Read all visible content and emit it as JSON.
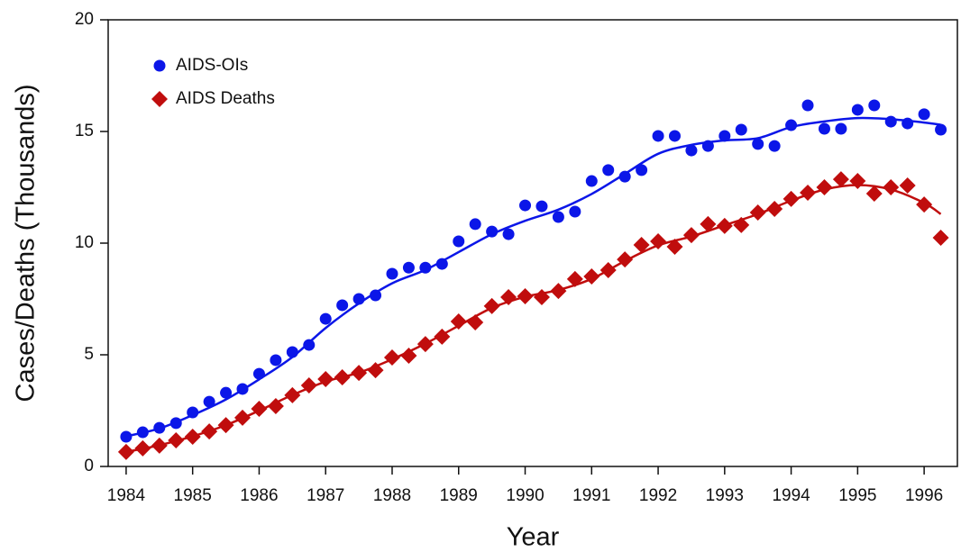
{
  "chart_data": {
    "type": "scatter",
    "xlabel": "Year",
    "ylabel": "Cases/Deaths (Thousands)",
    "x": [
      1984,
      1984.25,
      1984.5,
      1984.75,
      1985,
      1985.25,
      1985.5,
      1985.75,
      1986,
      1986.25,
      1986.5,
      1986.75,
      1987,
      1987.25,
      1987.5,
      1987.75,
      1988,
      1988.25,
      1988.5,
      1988.75,
      1989,
      1989.25,
      1989.5,
      1989.75,
      1990,
      1990.25,
      1990.5,
      1990.75,
      1991,
      1991.25,
      1991.5,
      1991.75,
      1992,
      1992.25,
      1992.5,
      1992.75,
      1993,
      1993.25,
      1993.5,
      1993.75,
      1994,
      1994.25,
      1994.5,
      1994.75,
      1995,
      1995.25,
      1995.5,
      1995.75,
      1996,
      1996.25
    ],
    "trend_x": [
      1984,
      1984.5,
      1985,
      1985.5,
      1986,
      1986.5,
      1987,
      1987.5,
      1988,
      1988.5,
      1989,
      1989.5,
      1990,
      1990.5,
      1991,
      1991.5,
      1992,
      1992.5,
      1993,
      1993.5,
      1994,
      1994.5,
      1995,
      1995.5,
      1996,
      1996.25
    ],
    "series": [
      {
        "name": "AIDS-OIs",
        "color": "#0b16e8",
        "marker": "circle",
        "values": [
          1.33,
          1.53,
          1.73,
          1.94,
          2.42,
          2.9,
          3.3,
          3.47,
          4.15,
          4.76,
          5.12,
          5.44,
          6.61,
          7.22,
          7.5,
          7.66,
          8.63,
          8.9,
          8.9,
          9.07,
          10.08,
          10.85,
          10.52,
          10.4,
          11.69,
          11.65,
          11.17,
          11.41,
          12.78,
          13.27,
          12.98,
          13.27,
          14.8,
          14.8,
          14.15,
          14.35,
          14.8,
          15.08,
          14.44,
          14.35,
          15.28,
          16.17,
          15.12,
          15.12,
          15.97,
          16.17,
          15.44,
          15.36,
          15.77,
          15.08
        ],
        "trend": [
          1.35,
          1.7,
          2.3,
          3.0,
          3.9,
          4.9,
          6.2,
          7.3,
          8.2,
          8.8,
          9.6,
          10.4,
          11.0,
          11.5,
          12.2,
          13.1,
          14.0,
          14.4,
          14.6,
          14.7,
          15.2,
          15.45,
          15.6,
          15.55,
          15.4,
          15.3
        ]
      },
      {
        "name": "AIDS Deaths",
        "color": "#c00d0d",
        "marker": "diamond",
        "values": [
          0.65,
          0.81,
          0.93,
          1.17,
          1.33,
          1.57,
          1.85,
          2.18,
          2.58,
          2.7,
          3.19,
          3.63,
          3.91,
          3.99,
          4.19,
          4.31,
          4.88,
          4.96,
          5.48,
          5.81,
          6.49,
          6.45,
          7.18,
          7.58,
          7.62,
          7.58,
          7.86,
          8.39,
          8.51,
          8.79,
          9.27,
          9.92,
          10.08,
          9.84,
          10.36,
          10.85,
          10.77,
          10.81,
          11.37,
          11.53,
          11.98,
          12.26,
          12.5,
          12.86,
          12.78,
          12.22,
          12.5,
          12.58,
          11.73,
          10.24
        ],
        "trend": [
          0.65,
          0.95,
          1.35,
          1.85,
          2.5,
          3.2,
          3.8,
          4.2,
          4.8,
          5.5,
          6.3,
          7.1,
          7.6,
          7.9,
          8.4,
          9.2,
          9.9,
          10.3,
          10.8,
          11.3,
          11.9,
          12.4,
          12.6,
          12.4,
          11.8,
          11.3
        ]
      }
    ],
    "xlim": [
      1983.73,
      1996.5
    ],
    "xticks": [
      1984,
      1985,
      1986,
      1987,
      1988,
      1989,
      1990,
      1991,
      1992,
      1993,
      1994,
      1995,
      1996
    ],
    "ylim": [
      0,
      20
    ],
    "yticks": [
      0,
      5,
      10,
      15,
      20
    ],
    "legend": "upper left"
  }
}
